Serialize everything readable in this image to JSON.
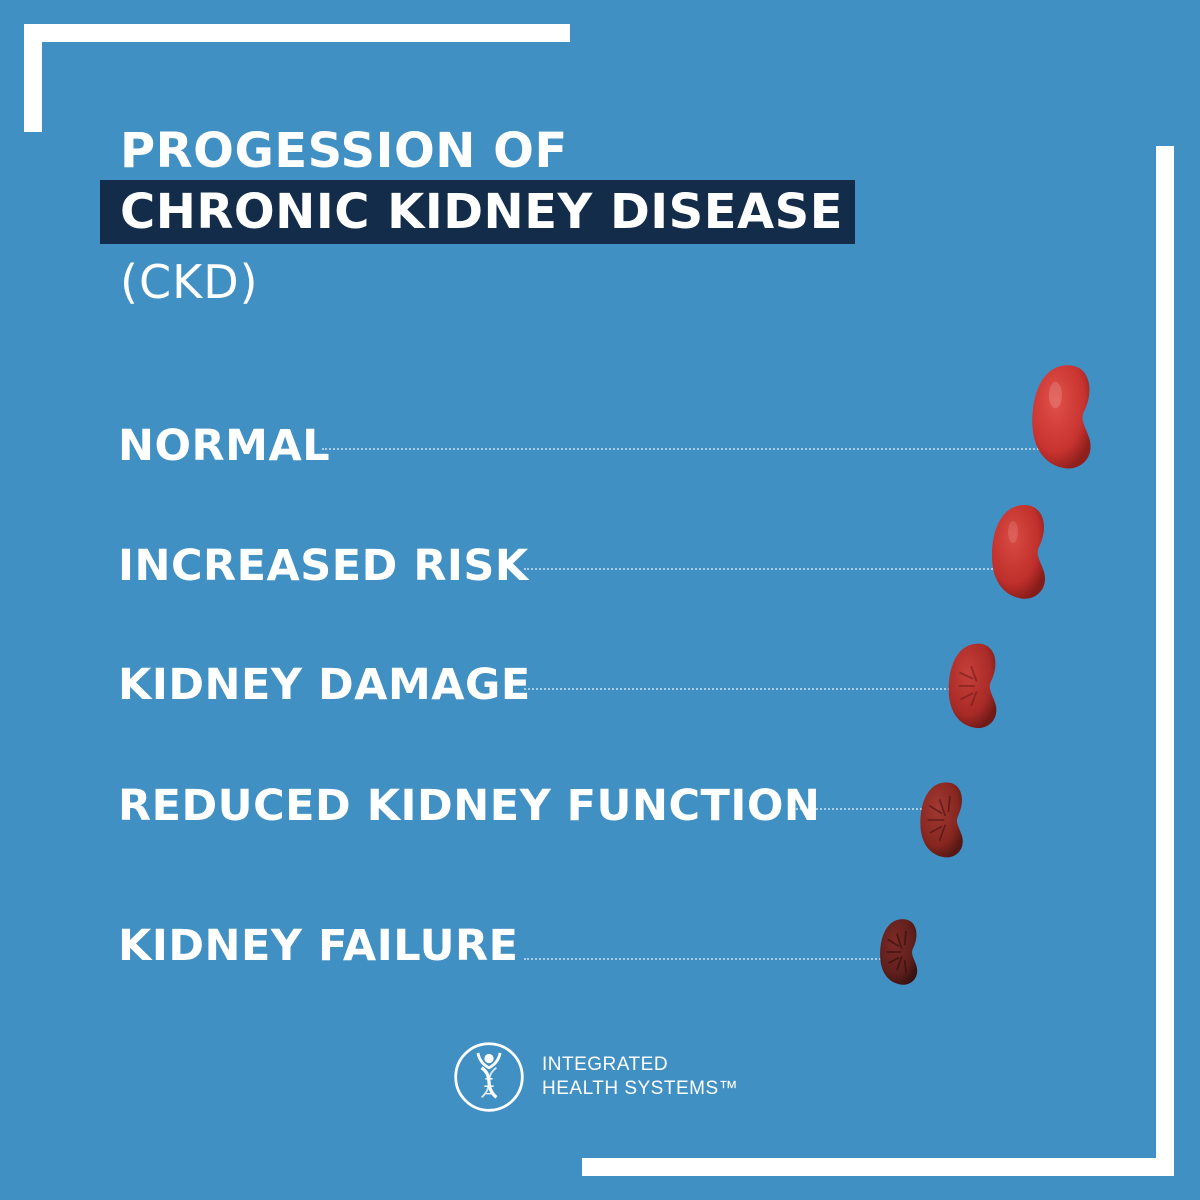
{
  "title": {
    "line1": "PROGESSION OF",
    "line2": "CHRONIC KIDNEY DISEASE",
    "line3": "(CKD)"
  },
  "stages": [
    {
      "label": "NORMAL"
    },
    {
      "label": "INCREASED RISK"
    },
    {
      "label": "KIDNEY DAMAGE"
    },
    {
      "label": "REDUCED KIDNEY FUNCTION"
    },
    {
      "label": "KIDNEY FAILURE"
    }
  ],
  "logo": {
    "line1": "INTEGRATED",
    "line2": "HEALTH SYSTEMS™",
    "icon": "dna-person-icon"
  },
  "colors": {
    "background": "#4190c4",
    "title_highlight": "#132c4a",
    "text": "#ffffff",
    "kidney_healthy": "#c8332f",
    "kidney_failing": "#5e1f1c"
  }
}
